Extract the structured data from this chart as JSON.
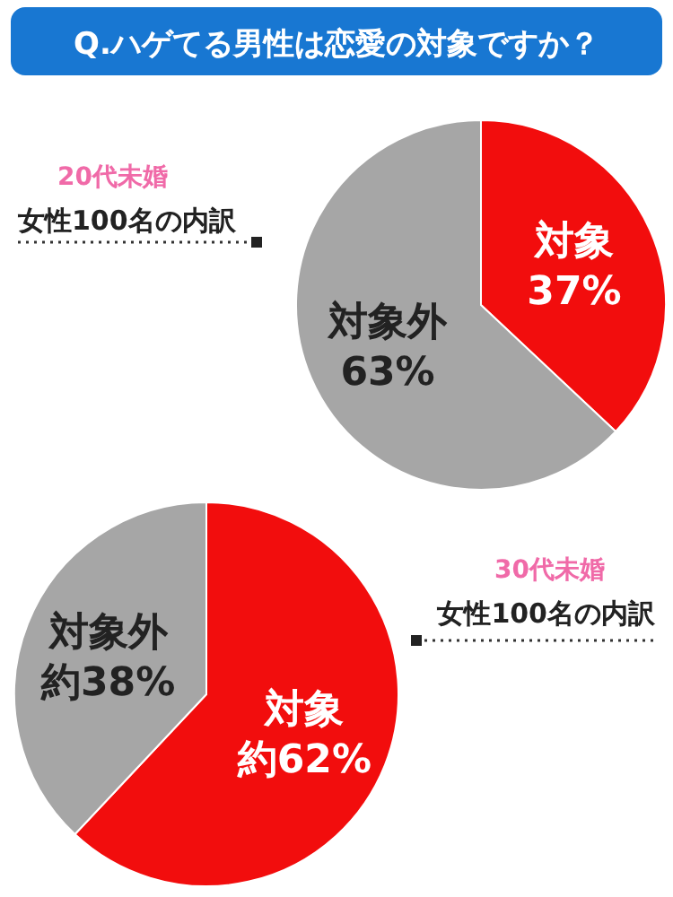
{
  "chart_data": [
    {
      "type": "pie",
      "title": "Q.ハゲてる男性は恋愛の対象ですか？",
      "categories": [
        "対象",
        "対象外"
      ],
      "values": [
        37,
        63
      ],
      "value_labels": [
        "37%",
        "63%"
      ],
      "colors": [
        "#f20d0d",
        "#a6a6a6"
      ],
      "annotations": [
        "20代未婚",
        "女性100名の内訳"
      ]
    },
    {
      "type": "pie",
      "categories": [
        "対象",
        "対象外"
      ],
      "values": [
        62,
        38
      ],
      "value_labels": [
        "約62%",
        "約38%"
      ],
      "colors": [
        "#f20d0d",
        "#a6a6a6"
      ],
      "annotations": [
        "30代未婚",
        "女性100名の内訳"
      ]
    }
  ]
}
